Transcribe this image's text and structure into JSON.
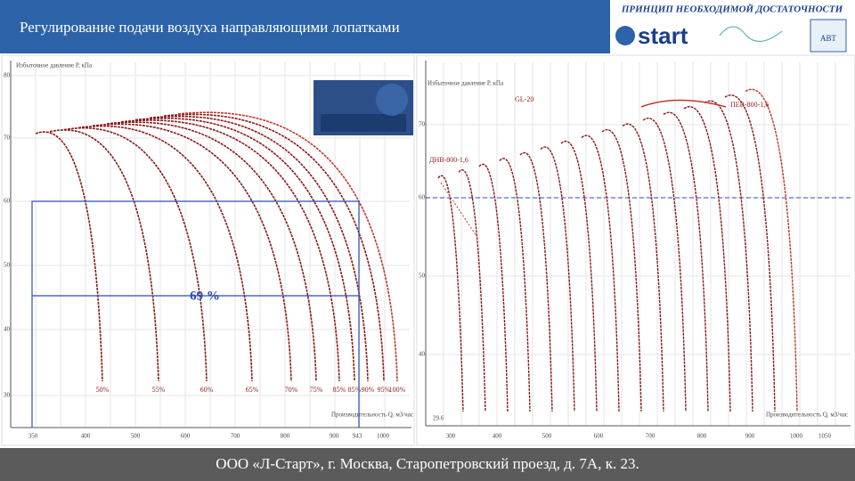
{
  "header": {
    "title": "Регулирование подачи воздуха направляющими лопатками",
    "slogan": "ПРИНЦИП НЕОБХОДИМОЙ ДОСТАТОЧНОСТИ",
    "logo": "start",
    "badge": "АВТ"
  },
  "left_chart": {
    "y_label": "Избыточное давление P, кПа",
    "x_label": "Производительность Q, м3/час",
    "yticks": [
      80,
      70,
      60,
      50,
      40,
      30
    ],
    "xticks": [
      350,
      400,
      500,
      600,
      700,
      800,
      900,
      943,
      1000
    ],
    "marker": "69 %",
    "curve_labels": [
      "50%",
      "55%",
      "60%",
      "65%",
      "70%",
      "75%",
      "85%",
      "85%",
      "90%",
      "95%",
      "100%"
    ]
  },
  "right_chart": {
    "y_label": "Избыточное давление P, кПа",
    "x_label": "Производительность Q, м3/час",
    "yticks": [
      70,
      60,
      50,
      40
    ],
    "xticks": [
      300,
      400,
      500,
      600,
      700,
      800,
      900,
      1000,
      1050
    ],
    "curve_labels": [
      "GL-20",
      "ДНВ-800-1,6",
      "ПЕВ-800-1,6"
    ],
    "start_label": "29.6"
  },
  "footer": "ООО «Л-Старт», г. Москва, Старопетровский проезд, д. 7А, к. 23."
}
